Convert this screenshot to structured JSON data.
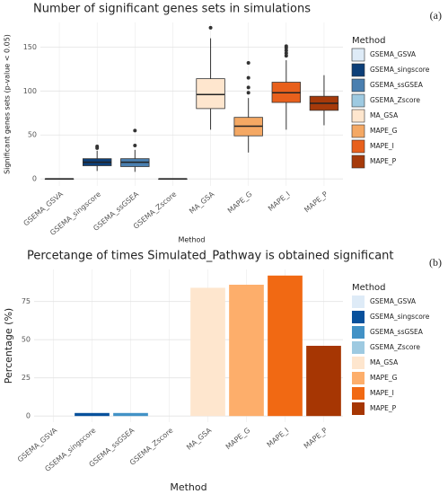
{
  "chart_data": [
    {
      "type": "box",
      "panel_label": "(a)",
      "title": "Number of significant genes sets in simulations",
      "y_label": "Significant genes sets (p-value < 0.05)",
      "x_label": "Method",
      "legend_title": "Method",
      "categories": [
        "GSEMA_GSVA",
        "GSEMA_singscore",
        "GSEMA_ssGSEA",
        "GSEMA_Zscore",
        "MA_GSA",
        "MAPE_G",
        "MAPE_I",
        "MAPE_P"
      ],
      "colors": [
        "#deebf7",
        "#0d3f78",
        "#4a7fb0",
        "#9ecae1",
        "#fee6ce",
        "#f4a864",
        "#e8601c",
        "#a63a0a"
      ],
      "boxes": [
        {
          "low": 0,
          "q1": 0,
          "median": 0,
          "q3": 0,
          "high": 0,
          "outliers": []
        },
        {
          "low": 9,
          "q1": 15,
          "median": 19,
          "q3": 23,
          "high": 32,
          "outliers": [
            35,
            37
          ]
        },
        {
          "low": 8,
          "q1": 14,
          "median": 19,
          "q3": 23,
          "high": 33,
          "outliers": [
            38,
            55
          ]
        },
        {
          "low": 0,
          "q1": 0,
          "median": 0,
          "q3": 0,
          "high": 0,
          "outliers": []
        },
        {
          "low": 56,
          "q1": 80,
          "median": 96,
          "q3": 114,
          "high": 160,
          "outliers": [
            172
          ]
        },
        {
          "low": 30,
          "q1": 49,
          "median": 60,
          "q3": 70,
          "high": 92,
          "outliers": [
            98,
            104,
            115,
            132
          ]
        },
        {
          "low": 56,
          "q1": 87,
          "median": 98,
          "q3": 110,
          "high": 135,
          "outliers": [
            140,
            143,
            146,
            149,
            151
          ]
        },
        {
          "low": 61,
          "q1": 78,
          "median": 86,
          "q3": 94,
          "high": 118,
          "outliers": []
        }
      ],
      "ylim": [
        -8,
        178
      ],
      "yticks": [
        0,
        50,
        100,
        150
      ],
      "grid": true
    },
    {
      "type": "bar",
      "panel_label": "(b)",
      "title": "Percetange of times Simulated_Pathway is obtained significant",
      "y_label": "Percentage (%)",
      "x_label": "Method",
      "legend_title": "Method",
      "categories": [
        "GSEMA_GSVA",
        "GSEMA_singscore",
        "GSEMA_ssGSEA",
        "GSEMA_Zscore",
        "MA_GSA",
        "MAPE_G",
        "MAPE_I",
        "MAPE_P"
      ],
      "colors": [
        "#deebf7",
        "#08519c",
        "#4292c6",
        "#9ecae1",
        "#fee6ce",
        "#fdae6b",
        "#f16913",
        "#a63603"
      ],
      "values": [
        0,
        2,
        2,
        0,
        84,
        86,
        92,
        46
      ],
      "ylim": [
        -4,
        96
      ],
      "yticks": [
        0,
        25,
        50,
        75
      ],
      "grid": true
    }
  ]
}
